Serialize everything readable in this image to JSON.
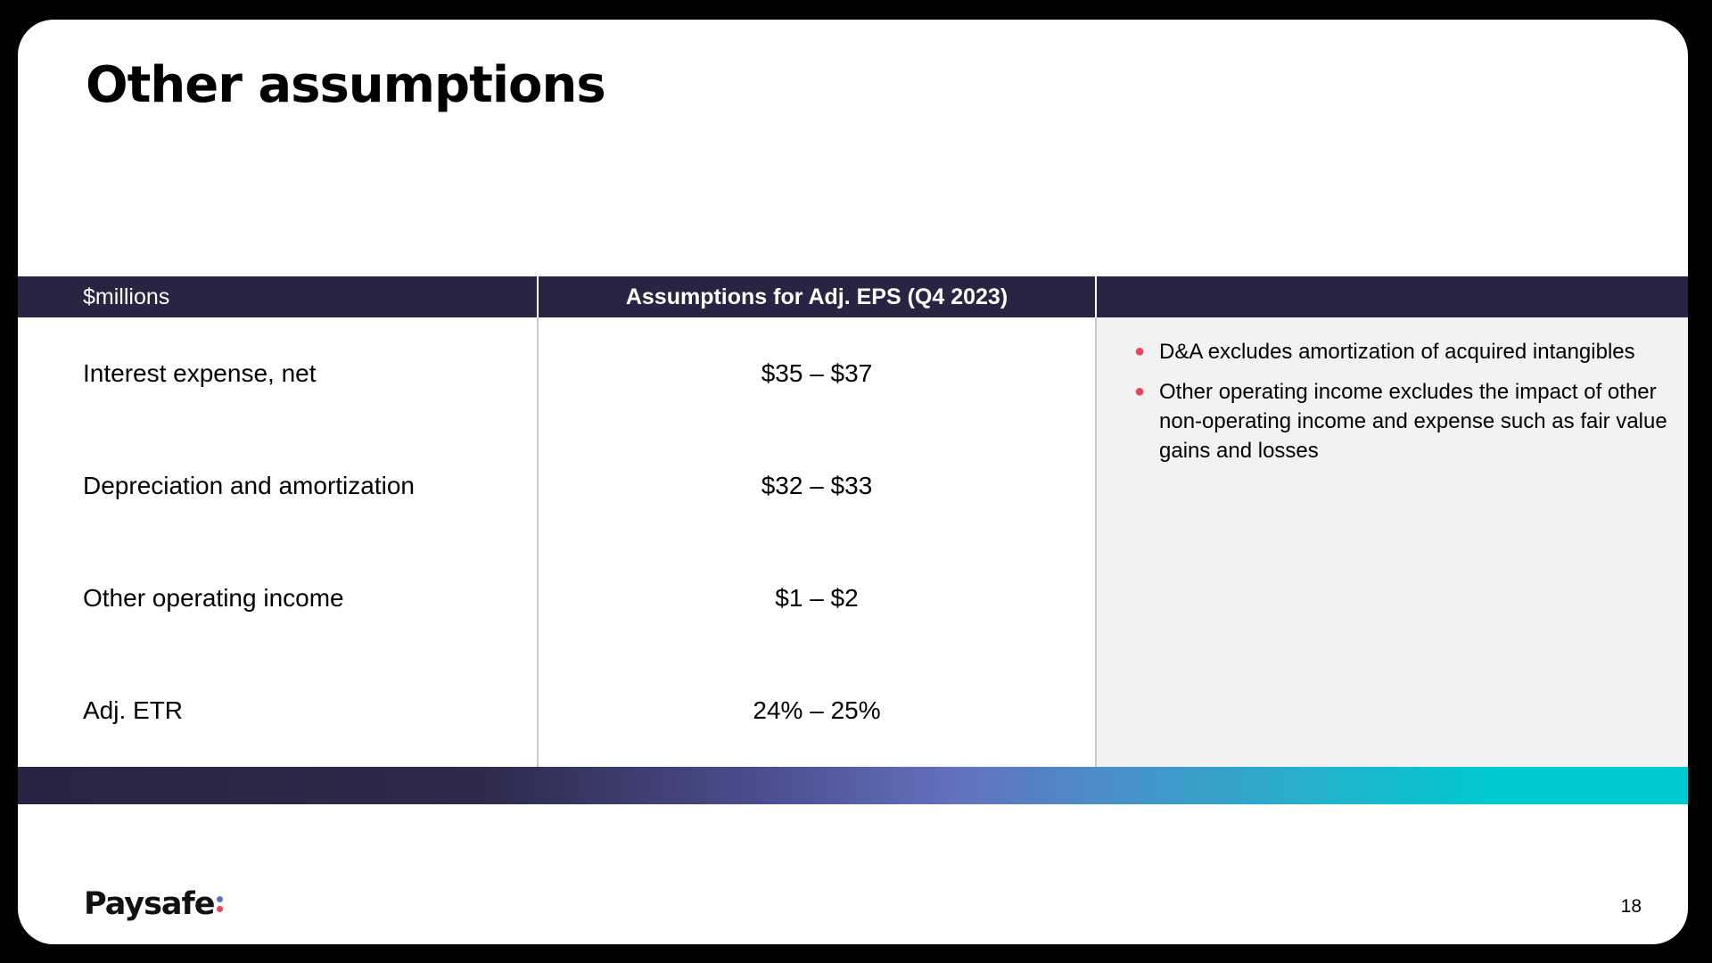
{
  "slide": {
    "title": "Other assumptions",
    "page_number": "18"
  },
  "table": {
    "header": {
      "col1": "$millions",
      "col2": "Assumptions for Adj. EPS (Q4 2023)",
      "col3": ""
    },
    "rows": [
      {
        "label": "Interest expense, net",
        "value": "$35 – $37"
      },
      {
        "label": "Depreciation and amortization",
        "value": "$32 – $33"
      },
      {
        "label": "Other operating income",
        "value": "$1 – $2"
      },
      {
        "label": "Adj. ETR",
        "value": "24% – 25%"
      }
    ]
  },
  "notes": [
    "D&A excludes amortization of acquired intangibles",
    "Other operating income excludes the impact of other non-operating income and expense such as fair value gains and losses"
  ],
  "footer": {
    "logo_text": "Paysafe"
  },
  "colors": {
    "header_bg": "#2a2342",
    "bullet": "#e8455f",
    "notes_bg": "#f2f2f2",
    "logo_dot_top": "#6470be",
    "logo_dot_bottom": "#e8455f"
  },
  "icons": {
    "bullet": "bullet-dot-icon",
    "logo_mark": "colon-dots-icon"
  }
}
